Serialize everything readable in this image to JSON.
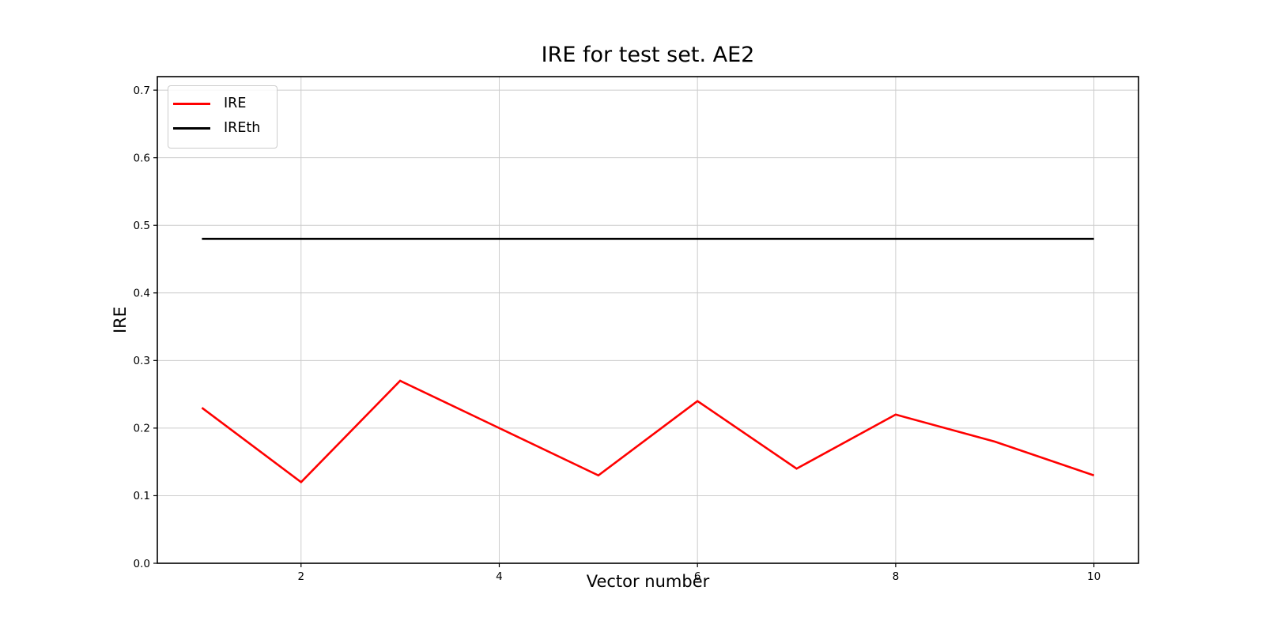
{
  "figure": {
    "background": "#ffffff",
    "title": "IRE for test set. AE2",
    "xlabel": "Vector number",
    "ylabel": "IRE"
  },
  "legend": {
    "position": "upper left",
    "entries": [
      {
        "label": "IRE",
        "color": "#ff0000"
      },
      {
        "label": "IREth",
        "color": "#000000"
      }
    ]
  },
  "chart_data": {
    "type": "line",
    "title": "IRE for test set. AE2",
    "xlabel": "Vector number",
    "ylabel": "IRE",
    "x": [
      1,
      2,
      3,
      4,
      5,
      6,
      7,
      8,
      9,
      10
    ],
    "series": [
      {
        "name": "IRE",
        "color": "#ff0000",
        "values": [
          0.23,
          0.12,
          0.27,
          0.2,
          0.13,
          0.24,
          0.14,
          0.22,
          0.18,
          0.13
        ]
      },
      {
        "name": "IREth",
        "color": "#000000",
        "values": [
          0.48,
          0.48,
          0.48,
          0.48,
          0.48,
          0.48,
          0.48,
          0.48,
          0.48,
          0.48
        ]
      }
    ],
    "xlim": [
      0.55,
      10.45
    ],
    "ylim": [
      0,
      0.72
    ],
    "xticks": [
      2,
      4,
      6,
      8,
      10
    ],
    "xticklabels": [
      "2",
      "4",
      "6",
      "8",
      "10"
    ],
    "yticks": [
      0.0,
      0.1,
      0.2,
      0.3,
      0.4,
      0.5,
      0.6,
      0.7
    ],
    "yticklabels": [
      "0.0",
      "0.1",
      "0.2",
      "0.3",
      "0.4",
      "0.5",
      "0.6",
      "0.7"
    ],
    "grid": true,
    "grid_color": "#cccccc",
    "spine_color": "#000000",
    "legend_position": "upper left"
  }
}
